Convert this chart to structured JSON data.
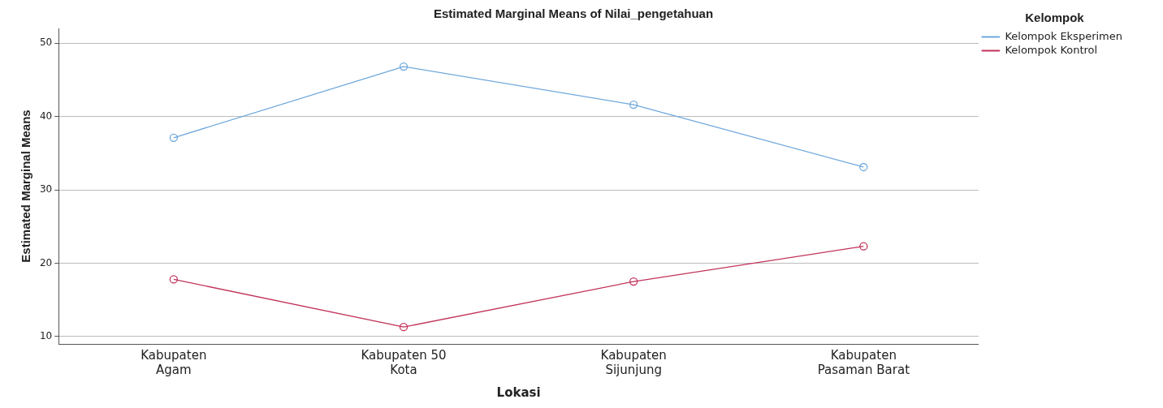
{
  "chart_data": {
    "type": "line",
    "title": "Estimated Marginal Means of Nilai_pengetahuan",
    "xlabel": "Lokasi",
    "ylabel": "Estimated Marginal Means",
    "legend_title": "Kelompok",
    "categories": [
      "Kabupaten Agam",
      "Kabupaten 50 Kota",
      "Kabupaten Sijunjung",
      "Kabupaten Pasaman Barat"
    ],
    "series": [
      {
        "name": "Kelompok Eksperimen",
        "color": "#6fa8dc",
        "values": [
          37.1,
          46.8,
          41.6,
          33.1
        ]
      },
      {
        "name": "Kelompok Kontrol",
        "color": "#c2325a",
        "values": [
          17.8,
          11.3,
          17.5,
          22.3
        ]
      }
    ],
    "ylim": [
      9,
      52
    ],
    "yticks": [
      10,
      20,
      30,
      40,
      50
    ],
    "grid": "y",
    "legend": "top right",
    "marker": "circle",
    "line_style": "solid"
  }
}
